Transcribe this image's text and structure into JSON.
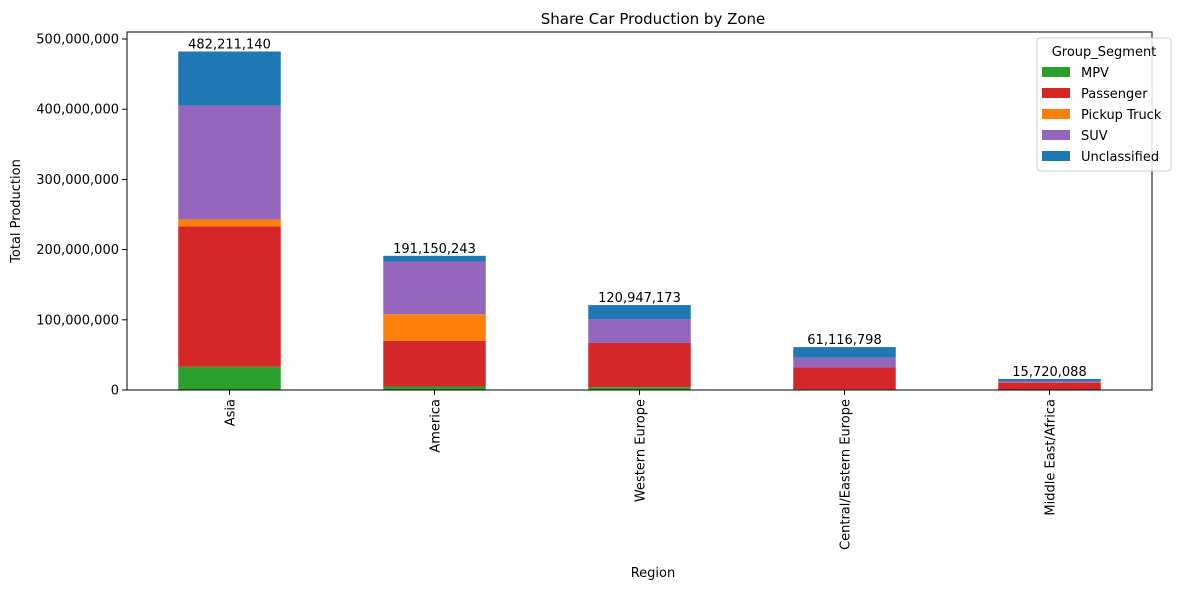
{
  "chart_data": {
    "type": "bar",
    "stacked": true,
    "title": "Share Car Production by Zone",
    "xlabel": "Region",
    "ylabel": "Total Production",
    "ylim": [
      0,
      510000000
    ],
    "yticks": [
      0,
      100000000,
      200000000,
      300000000,
      400000000,
      500000000
    ],
    "ytick_labels": [
      "0",
      "100,000,000",
      "200,000,000",
      "300,000,000",
      "400,000,000",
      "500,000,000"
    ],
    "grid": false,
    "legend_title": "Group_Segment",
    "legend_position": "top-right",
    "categories": [
      "Asia",
      "America",
      "Western Europe",
      "Central/Eastern Europe",
      "Middle East/Africa"
    ],
    "series": [
      {
        "name": "MPV",
        "color": "#2ca02c",
        "values": [
          33000000,
          5000000,
          4000000,
          1000000,
          500000
        ]
      },
      {
        "name": "Passenger",
        "color": "#d62728",
        "values": [
          200000000,
          65000000,
          63000000,
          31000000,
          10000000
        ]
      },
      {
        "name": "Pickup Truck",
        "color": "#ff7f0e",
        "values": [
          10000000,
          38000000,
          0,
          0,
          300000
        ]
      },
      {
        "name": "SUV",
        "color": "#9467bd",
        "values": [
          162000000,
          75000000,
          34000000,
          14000000,
          2000000
        ]
      },
      {
        "name": "Unclassified",
        "color": "#1f77b4",
        "values": [
          77211140,
          8150243,
          19947173,
          15116798,
          2920088
        ]
      }
    ],
    "totals": [
      482211140,
      191150243,
      120947173,
      61116798,
      15720088
    ],
    "total_labels": [
      "482,211,140",
      "191,150,243",
      "120,947,173",
      "61,116,798",
      "15,720,088"
    ]
  }
}
